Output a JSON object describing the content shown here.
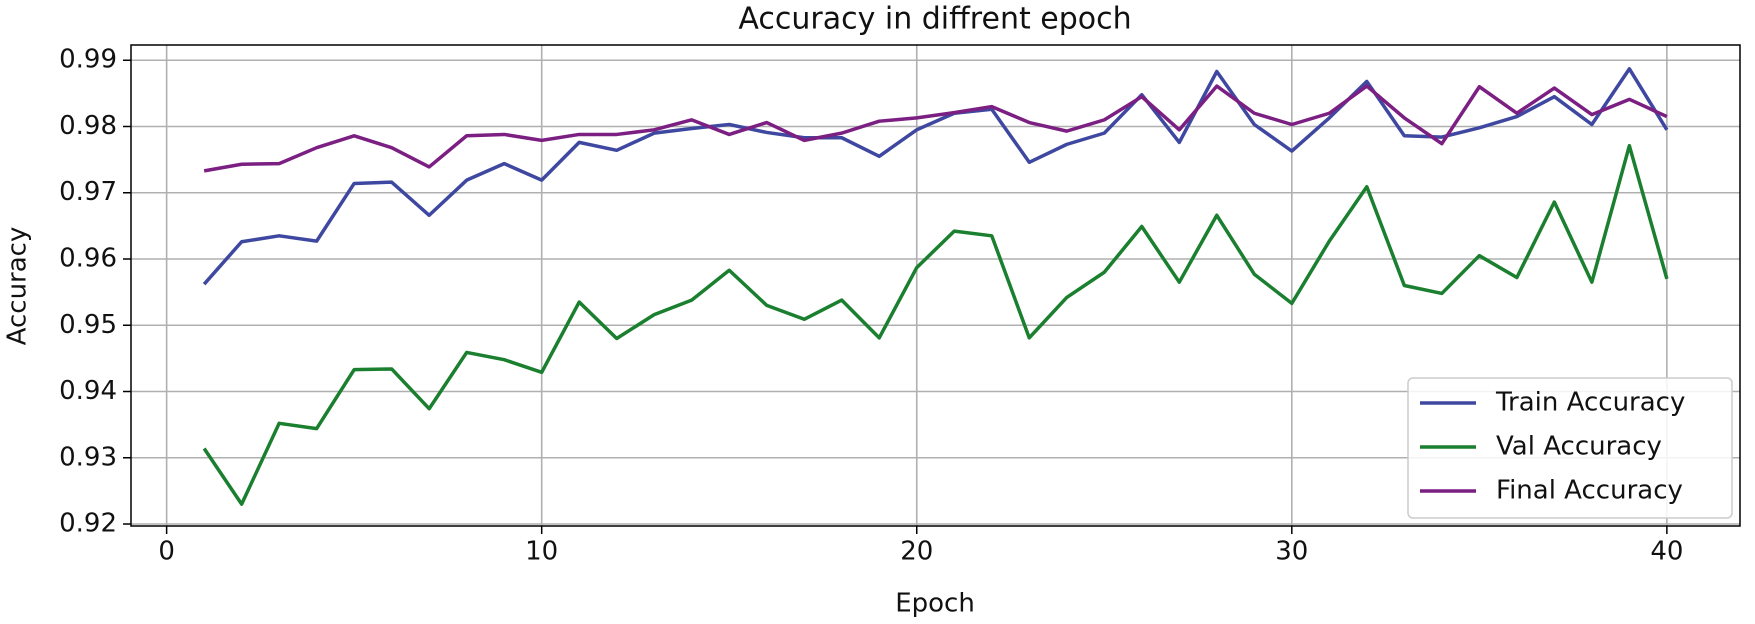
{
  "chart_data": {
    "type": "line",
    "title": "Accuracy in diffrent epoch",
    "x_label": "Epoch",
    "y_label": "Accuracy",
    "x": [
      1,
      2,
      3,
      4,
      5,
      6,
      7,
      8,
      9,
      10,
      11,
      12,
      13,
      14,
      15,
      16,
      17,
      18,
      19,
      20,
      21,
      22,
      23,
      24,
      25,
      26,
      27,
      28,
      29,
      30,
      31,
      32,
      33,
      34,
      35,
      36,
      37,
      38,
      39,
      40
    ],
    "series": [
      {
        "name": "Train Accuracy",
        "color": "#3f48a0",
        "values": [
          0.9562,
          0.9626,
          0.9635,
          0.9627,
          0.9714,
          0.9716,
          0.9666,
          0.9719,
          0.9744,
          0.9719,
          0.9776,
          0.9764,
          0.979,
          0.9797,
          0.9803,
          0.9791,
          0.9783,
          0.9783,
          0.9755,
          0.9795,
          0.982,
          0.9826,
          0.9746,
          0.9773,
          0.979,
          0.9848,
          0.9776,
          0.9883,
          0.9803,
          0.9763,
          0.9813,
          0.9868,
          0.9786,
          0.9784,
          0.9798,
          0.9815,
          0.9845,
          0.9803,
          0.9887,
          0.9795
        ]
      },
      {
        "name": "Val Accuracy",
        "color": "#1a7f2e",
        "values": [
          0.9314,
          0.923,
          0.9352,
          0.9344,
          0.9433,
          0.9434,
          0.9374,
          0.9459,
          0.9448,
          0.9429,
          0.9535,
          0.948,
          0.9516,
          0.9538,
          0.9583,
          0.953,
          0.9509,
          0.9538,
          0.9481,
          0.9587,
          0.9642,
          0.9635,
          0.9481,
          0.9542,
          0.958,
          0.9649,
          0.9565,
          0.9666,
          0.9577,
          0.9533,
          0.9627,
          0.9709,
          0.956,
          0.9548,
          0.9605,
          0.9572,
          0.9686,
          0.9565,
          0.9771,
          0.957
        ]
      },
      {
        "name": "Final Accuracy",
        "color": "#7b1f82",
        "values": [
          0.9733,
          0.9743,
          0.9744,
          0.9768,
          0.9786,
          0.9768,
          0.9739,
          0.9786,
          0.9788,
          0.9779,
          0.9788,
          0.9788,
          0.9795,
          0.981,
          0.9788,
          0.9806,
          0.9779,
          0.979,
          0.9808,
          0.9813,
          0.9821,
          0.983,
          0.9806,
          0.9793,
          0.981,
          0.9845,
          0.9795,
          0.9861,
          0.982,
          0.9803,
          0.982,
          0.9861,
          0.9813,
          0.9774,
          0.986,
          0.982,
          0.9858,
          0.9818,
          0.9841,
          0.9815
        ]
      }
    ],
    "xlim": [
      -0.95,
      41.95
    ],
    "ylim": [
      0.9197,
      0.9923
    ],
    "xticks": [
      0,
      10,
      20,
      30,
      40
    ],
    "yticks": [
      0.92,
      0.93,
      0.94,
      0.95,
      0.96,
      0.97,
      0.98,
      0.99
    ],
    "grid": true,
    "legend": "lower right"
  }
}
